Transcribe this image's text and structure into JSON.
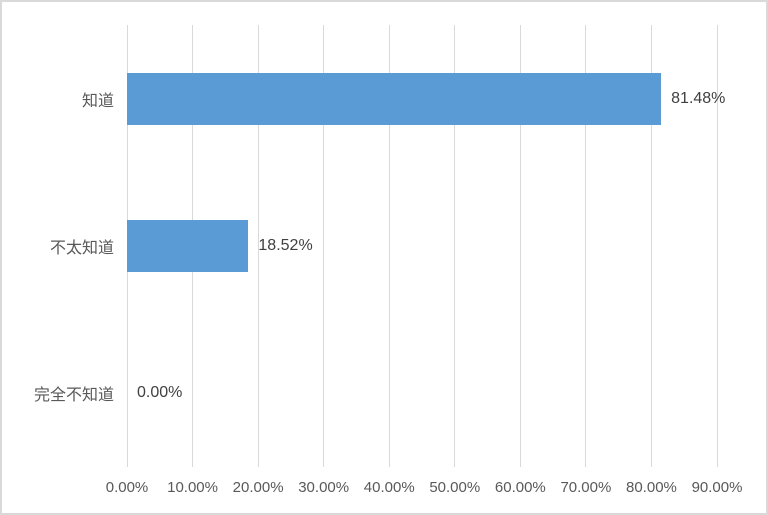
{
  "chart_data": {
    "type": "bar",
    "orientation": "horizontal",
    "title": "",
    "xlabel": "",
    "ylabel": "",
    "categories": [
      "知道",
      "不太知道",
      "完全不知道"
    ],
    "values": [
      81.48,
      18.52,
      0.0
    ],
    "data_labels": [
      "81.48%",
      "18.52%",
      "0.00%"
    ],
    "x_ticks": [
      "0.00%",
      "10.00%",
      "20.00%",
      "30.00%",
      "40.00%",
      "50.00%",
      "60.00%",
      "70.00%",
      "80.00%",
      "90.00%"
    ],
    "xlim": [
      0,
      90
    ],
    "grid": true,
    "legend": "none",
    "colors": {
      "bar": "#5b9bd5",
      "gridline": "#d9d9d9",
      "axis_text": "#595959",
      "data_label_text": "#404040",
      "chart_border": "#d9d9d9",
      "background": "#ffffff"
    }
  }
}
